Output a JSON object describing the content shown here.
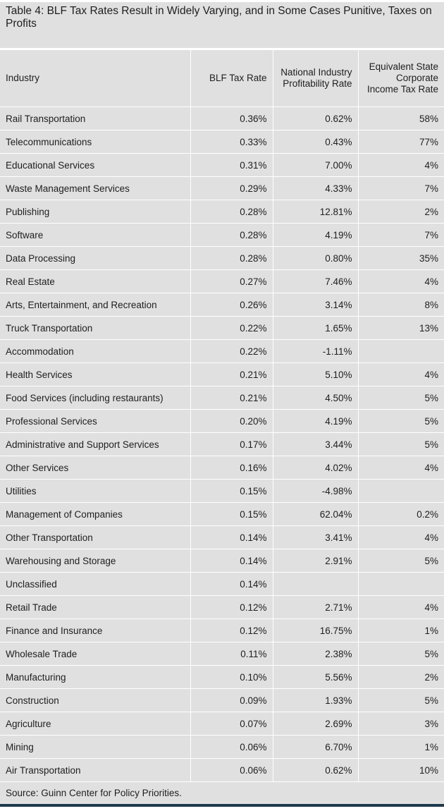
{
  "title": "Table 4: BLF Tax Rates Result in Widely Varying, and in Some Cases Punitive, Taxes on Profits",
  "headers": [
    "Industry",
    "BLF Tax Rate",
    "National Industry Profitability Rate",
    "Equivalent State Corporate Income Tax Rate"
  ],
  "rows": [
    [
      "Rail Transportation",
      "0.36%",
      "0.62%",
      "58%"
    ],
    [
      "Telecommunications",
      "0.33%",
      "0.43%",
      "77%"
    ],
    [
      "Educational Services",
      "0.31%",
      "7.00%",
      "4%"
    ],
    [
      "Waste Management Services",
      "0.29%",
      "4.33%",
      "7%"
    ],
    [
      "Publishing",
      "0.28%",
      "12.81%",
      "2%"
    ],
    [
      "Software",
      "0.28%",
      "4.19%",
      "7%"
    ],
    [
      "Data Processing",
      "0.28%",
      "0.80%",
      "35%"
    ],
    [
      "Real Estate",
      "0.27%",
      "7.46%",
      "4%"
    ],
    [
      "Arts, Entertainment, and Recreation",
      "0.26%",
      "3.14%",
      "8%"
    ],
    [
      "Truck Transportation",
      "0.22%",
      "1.65%",
      "13%"
    ],
    [
      "Accommodation",
      "0.22%",
      "-1.11%",
      ""
    ],
    [
      "Health Services",
      "0.21%",
      "5.10%",
      "4%"
    ],
    [
      "Food Services (including restaurants)",
      "0.21%",
      "4.50%",
      "5%"
    ],
    [
      "Professional Services",
      "0.20%",
      "4.19%",
      "5%"
    ],
    [
      "Administrative and Support Services",
      "0.17%",
      "3.44%",
      "5%"
    ],
    [
      "Other Services",
      "0.16%",
      "4.02%",
      "4%"
    ],
    [
      "Utilities",
      "0.15%",
      "-4.98%",
      ""
    ],
    [
      "Management of Companies",
      "0.15%",
      "62.04%",
      "0.2%"
    ],
    [
      "Other Transportation",
      "0.14%",
      "3.41%",
      "4%"
    ],
    [
      "Warehousing and Storage",
      "0.14%",
      "2.91%",
      "5%"
    ],
    [
      "Unclassified",
      "0.14%",
      "",
      ""
    ],
    [
      "Retail Trade",
      "0.12%",
      "2.71%",
      "4%"
    ],
    [
      "Finance and Insurance",
      "0.12%",
      "16.75%",
      "1%"
    ],
    [
      "Wholesale Trade",
      "0.11%",
      "2.38%",
      "5%"
    ],
    [
      "Manufacturing",
      "0.10%",
      "5.56%",
      "2%"
    ],
    [
      "Construction",
      "0.09%",
      "1.93%",
      "5%"
    ],
    [
      "Agriculture",
      "0.07%",
      "2.69%",
      "3%"
    ],
    [
      "Mining",
      "0.06%",
      "6.70%",
      "1%"
    ],
    [
      "Air Transportation",
      "0.06%",
      "0.62%",
      "10%"
    ]
  ],
  "source": "Source: Guinn Center for Policy Priorities."
}
